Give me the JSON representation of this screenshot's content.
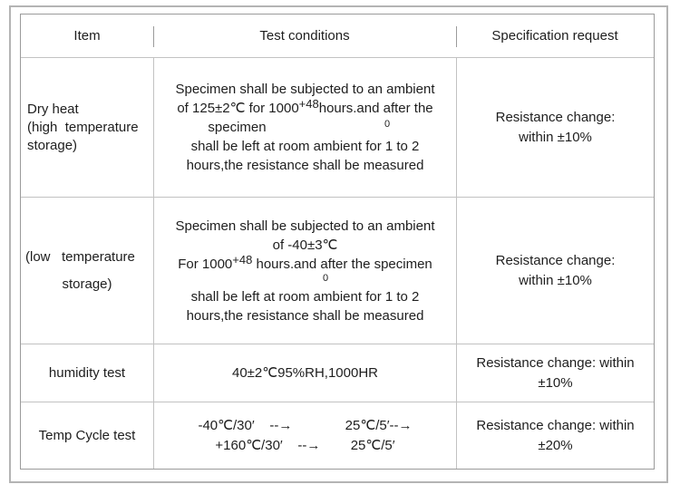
{
  "header": {
    "item": "Item",
    "conditions": "Test conditions",
    "spec": "Specification request"
  },
  "rows": [
    {
      "item": {
        "l1": "Dry heat",
        "l2": "(high  temperature",
        "l3": "storage)"
      },
      "cond": {
        "l1": "Specimen shall be subjected to an ambient",
        "l2_pre": "of 125±2℃ for 1000",
        "l2_sup": "+48",
        "l2_post": "hours.and after the",
        "l3_word": "specimen",
        "l3_zero": "0",
        "l4": "shall be left at room ambient for 1 to 2",
        "l5": "hours,the resistance shall be measured"
      },
      "spec": {
        "l1": "Resistance change:",
        "l2": "within ±10%"
      }
    },
    {
      "item": {
        "l1": "(low   temperature",
        "l2": "storage)"
      },
      "cond": {
        "l1": "Specimen shall be subjected to an ambient",
        "l2": "of -40±3℃",
        "l3_pre": "For 1000",
        "l3_sup": "+48",
        "l3_post": " hours.and after the specimen",
        "l4_zero": "0",
        "l5": "shall be left at room ambient for 1 to 2",
        "l6": "hours,the resistance shall be measured"
      },
      "spec": {
        "l1": "Resistance change:",
        "l2": "within ±10%"
      }
    },
    {
      "item": {
        "l1": "humidity test"
      },
      "cond": {
        "l1": "40±2℃95%RH,1000HR"
      },
      "spec": {
        "l1": "Resistance change: within",
        "l2": "±10%"
      }
    },
    {
      "item": {
        "l1": "Temp Cycle test"
      },
      "cond": {
        "l1": "-40℃/30′    --→              25℃/5′--→",
        "l2": "+160℃/30′    --→        25℃/5′"
      },
      "spec": {
        "l1": "Resistance change: within",
        "l2": "±20%"
      }
    }
  ]
}
